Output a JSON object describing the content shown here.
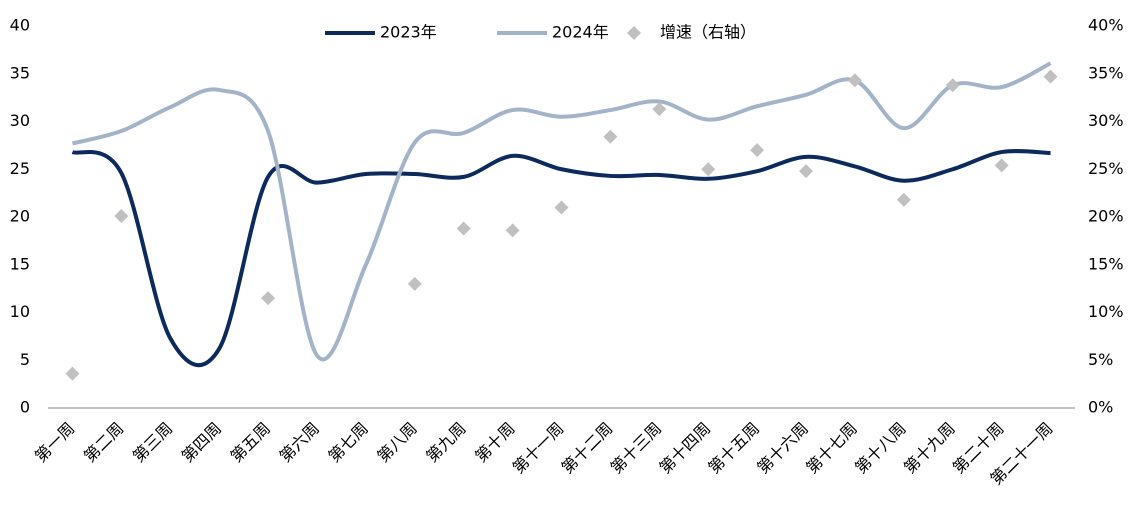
{
  "chart_data": {
    "type": "line",
    "categories": [
      "第一周",
      "第二周",
      "第三周",
      "第四周",
      "第五周",
      "第六周",
      "第七周",
      "第八周",
      "第九周",
      "第十周",
      "第十一周",
      "第十二周",
      "第十三周",
      "第十四周",
      "第十五周",
      "第十六周",
      "第十七周",
      "第十八周",
      "第十九周",
      "第二十周",
      "第二十一周"
    ],
    "series": [
      {
        "name": "2023年",
        "color": "#0d2a5c",
        "values": [
          26.8,
          24.6,
          7.3,
          6.2,
          24.2,
          23.6,
          24.5,
          24.5,
          24.2,
          26.4,
          25.0,
          24.3,
          24.4,
          24.0,
          24.8,
          26.3,
          25.3,
          23.8,
          25.0,
          26.8,
          26.7
        ]
      },
      {
        "name": "2024年",
        "color": "#a3b4c8",
        "values": [
          27.7,
          29.0,
          31.5,
          33.3,
          29.0,
          5.5,
          15.0,
          27.8,
          28.8,
          31.2,
          30.5,
          31.2,
          32.1,
          30.2,
          31.6,
          32.8,
          34.3,
          29.3,
          33.8,
          33.6,
          36.1
        ]
      },
      {
        "name": "增速（右轴）",
        "color": "#c0c0c0",
        "type": "scatter",
        "axis": "y2",
        "values": [
          3.6,
          20.1,
          null,
          null,
          11.5,
          null,
          null,
          13.0,
          18.8,
          18.6,
          21.0,
          28.4,
          31.3,
          25.0,
          27.0,
          24.8,
          34.3,
          21.8,
          33.8,
          25.4,
          34.7
        ]
      }
    ],
    "ylim": [
      0,
      40
    ],
    "yticks": [
      0,
      5,
      10,
      15,
      20,
      25,
      30,
      35,
      40
    ],
    "y2lim": [
      0,
      40
    ],
    "y2ticks": [
      {
        "value": 0,
        "label": "0%"
      },
      {
        "value": 5,
        "label": "5%"
      },
      {
        "value": 10,
        "label": "10%"
      },
      {
        "value": 15,
        "label": "15%"
      },
      {
        "value": 20,
        "label": "20%"
      },
      {
        "value": 25,
        "label": "25%"
      },
      {
        "value": 30,
        "label": "30%"
      },
      {
        "value": 35,
        "label": "35%"
      },
      {
        "value": 40,
        "label": "40%"
      }
    ],
    "legend": "top"
  }
}
